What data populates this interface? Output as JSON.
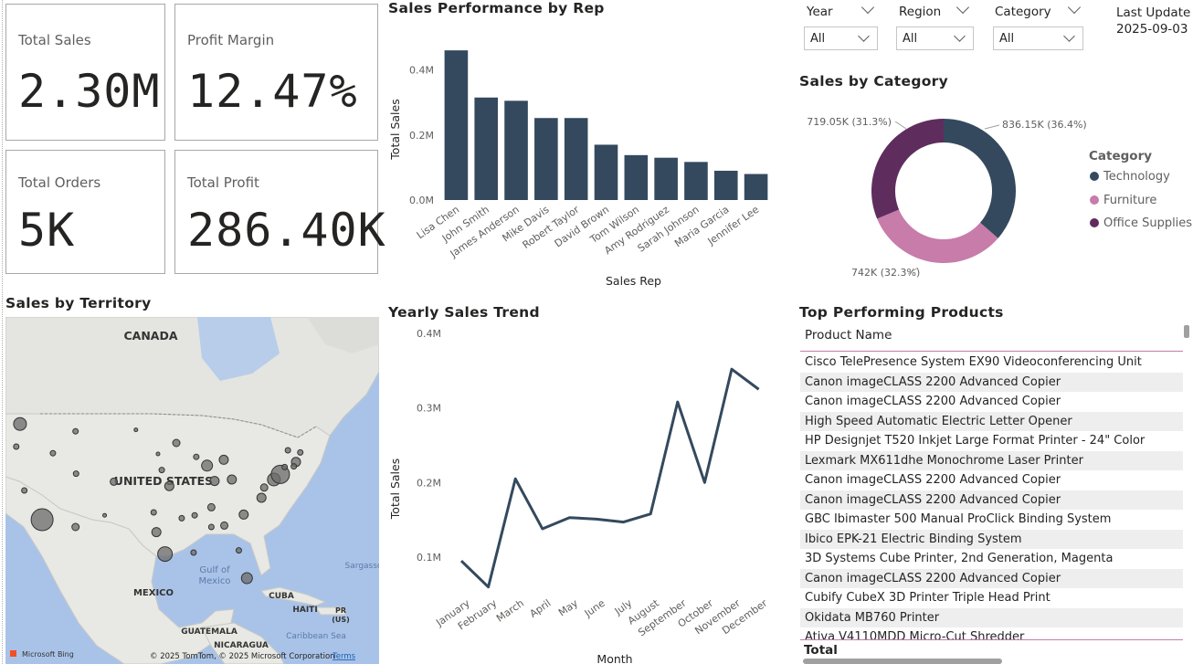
{
  "kpis": {
    "total_sales": {
      "label": "Total Sales",
      "value": "2.30M"
    },
    "profit_margin": {
      "label": "Profit Margin",
      "value": "12.47%"
    },
    "total_orders": {
      "label": "Total Orders",
      "value": "5K"
    },
    "total_profit": {
      "label": "Total Profit",
      "value": "286.40K"
    }
  },
  "slicers": {
    "year": {
      "label": "Year",
      "value": "All"
    },
    "region": {
      "label": "Region",
      "value": "All"
    },
    "category": {
      "label": "Category",
      "value": "All"
    }
  },
  "last_update": {
    "label": "Last Update",
    "date": "2025-09-03"
  },
  "map": {
    "title": "Sales by Territory",
    "labels": {
      "canada": "CANADA",
      "us": "UNITED STATES",
      "gulf": "Gulf of\nMexico",
      "mexico": "MEXICO",
      "cuba": "CUBA",
      "haiti": "HAITI",
      "pr": "PR\n(US)",
      "guatemala": "GUATEMALA",
      "nicaragua": "NICARAGUA",
      "caribbean": "Caribbean Sea",
      "sargasso": "Sargasso"
    },
    "attribution": "© 2025 TomTom, © 2025 Microsoft Corporation",
    "terms": "Terms",
    "brand": "Microsoft Bing"
  },
  "table": {
    "title": "Top Performing Products",
    "column_header": "Product Name",
    "rows": [
      "Cisco TelePresence System EX90 Videoconferencing Unit",
      "Canon imageCLASS 2200 Advanced Copier",
      "Canon imageCLASS 2200 Advanced Copier",
      "High Speed Automatic Electric Letter Opener",
      "HP Designjet T520 Inkjet Large Format Printer - 24\" Color",
      "Lexmark MX611dhe Monochrome Laser Printer",
      "Canon imageCLASS 2200 Advanced Copier",
      "Canon imageCLASS 2200 Advanced Copier",
      "GBC Ibimaster 500 Manual ProClick Binding System",
      "Ibico EPK-21 Electric Binding System",
      "3D Systems Cube Printer, 2nd Generation, Magenta",
      "Canon imageCLASS 2200 Advanced Copier",
      "Cubify CubeX 3D Printer Triple Head Print",
      "Okidata MB760 Printer",
      "Ativa V4110MDD Micro-Cut Shredder"
    ],
    "total_label": "Total"
  },
  "chart_data": [
    {
      "type": "bar",
      "title": "Sales Performance by Rep",
      "xlabel": "Sales Rep",
      "ylabel": "Total Sales",
      "categories": [
        "Lisa Chen",
        "John Smith",
        "James Anderson",
        "Mike Davis",
        "Robert Taylor",
        "David Brown",
        "Tom Wilson",
        "Amy Rodriguez",
        "Sarah Johnson",
        "Maria Garcia",
        "Jennifer Lee"
      ],
      "values": [
        460000,
        315000,
        305000,
        252000,
        252000,
        170000,
        138000,
        130000,
        117000,
        90000,
        80000
      ],
      "yticks": [
        "0.0M",
        "0.2M",
        "0.4M"
      ],
      "ylim": [
        0,
        480000
      ],
      "color": "#34495e"
    },
    {
      "type": "pie",
      "title": "Sales by Category",
      "legend_title": "Category",
      "slices": [
        {
          "name": "Technology",
          "value": 836150,
          "label": "836.15K (36.4%)",
          "color": "#34495e"
        },
        {
          "name": "Furniture",
          "value": 742000,
          "label": "742K (32.3%)",
          "color": "#c77caa"
        },
        {
          "name": "Office Supplies",
          "value": 719050,
          "label": "719.05K (31.3%)",
          "color": "#5e2d5e"
        }
      ]
    },
    {
      "type": "line",
      "title": "Yearly Sales Trend",
      "xlabel": "Month",
      "ylabel": "Total Sales",
      "x": [
        "January",
        "February",
        "March",
        "April",
        "May",
        "June",
        "July",
        "August",
        "September",
        "October",
        "November",
        "December"
      ],
      "values": [
        95000,
        60000,
        205000,
        138000,
        153000,
        151000,
        147000,
        158000,
        308000,
        200000,
        352000,
        325000
      ],
      "yticks": [
        "0.1M",
        "0.2M",
        "0.3M",
        "0.4M"
      ],
      "ylim": [
        50000,
        400000
      ],
      "color": "#34495e"
    }
  ],
  "map_bubbles": [
    {
      "lon": -122.3,
      "lat": 47.6,
      "size": 7
    },
    {
      "lon": -123.0,
      "lat": 44.5,
      "size": 3
    },
    {
      "lon": -121.5,
      "lat": 38.5,
      "size": 3
    },
    {
      "lon": -118.2,
      "lat": 34.5,
      "size": 12
    },
    {
      "lon": -116.2,
      "lat": 43.6,
      "size": 3
    },
    {
      "lon": -112.0,
      "lat": 46.6,
      "size": 3
    },
    {
      "lon": -111.9,
      "lat": 40.8,
      "size": 3
    },
    {
      "lon": -112.0,
      "lat": 33.5,
      "size": 4
    },
    {
      "lon": -104.9,
      "lat": 39.7,
      "size": 4
    },
    {
      "lon": -106.6,
      "lat": 35.1,
      "size": 2
    },
    {
      "lon": -100.8,
      "lat": 46.8,
      "size": 2
    },
    {
      "lon": -96.7,
      "lat": 43.5,
      "size": 2
    },
    {
      "lon": -96.0,
      "lat": 41.3,
      "size": 3
    },
    {
      "lon": -97.5,
      "lat": 35.5,
      "size": 3
    },
    {
      "lon": -97.0,
      "lat": 32.8,
      "size": 5
    },
    {
      "lon": -95.4,
      "lat": 29.8,
      "size": 8
    },
    {
      "lon": -93.3,
      "lat": 45.0,
      "size": 4
    },
    {
      "lon": -94.6,
      "lat": 39.1,
      "size": 5
    },
    {
      "lon": -92.3,
      "lat": 34.7,
      "size": 3
    },
    {
      "lon": -90.1,
      "lat": 30.0,
      "size": 3
    },
    {
      "lon": -89.6,
      "lat": 43.1,
      "size": 3
    },
    {
      "lon": -87.6,
      "lat": 41.9,
      "size": 6
    },
    {
      "lon": -89.9,
      "lat": 35.1,
      "size": 3
    },
    {
      "lon": -86.8,
      "lat": 33.5,
      "size": 3
    },
    {
      "lon": -86.2,
      "lat": 39.8,
      "size": 5
    },
    {
      "lon": -84.5,
      "lat": 42.7,
      "size": 5
    },
    {
      "lon": -83.0,
      "lat": 40.0,
      "size": 5
    },
    {
      "lon": -84.4,
      "lat": 33.7,
      "size": 4
    },
    {
      "lon": -86.8,
      "lat": 36.2,
      "size": 4
    },
    {
      "lon": -81.7,
      "lat": 30.3,
      "size": 3
    },
    {
      "lon": -80.2,
      "lat": 26.5,
      "size": 6
    },
    {
      "lon": -80.8,
      "lat": 35.2,
      "size": 5
    },
    {
      "lon": -77.5,
      "lat": 37.5,
      "size": 5
    },
    {
      "lon": -77.0,
      "lat": 38.9,
      "size": 4
    },
    {
      "lon": -75.2,
      "lat": 40.0,
      "size": 7
    },
    {
      "lon": -74.0,
      "lat": 40.7,
      "size": 10
    },
    {
      "lon": -73.2,
      "lat": 41.7,
      "size": 3
    },
    {
      "lon": -71.1,
      "lat": 42.4,
      "size": 5
    },
    {
      "lon": -71.5,
      "lat": 41.8,
      "size": 3
    },
    {
      "lon": -72.6,
      "lat": 44.0,
      "size": 3
    },
    {
      "lon": -70.3,
      "lat": 43.7,
      "size": 3
    }
  ],
  "colors": {
    "accent": "#34495e",
    "table_rule": "#c77caa"
  }
}
